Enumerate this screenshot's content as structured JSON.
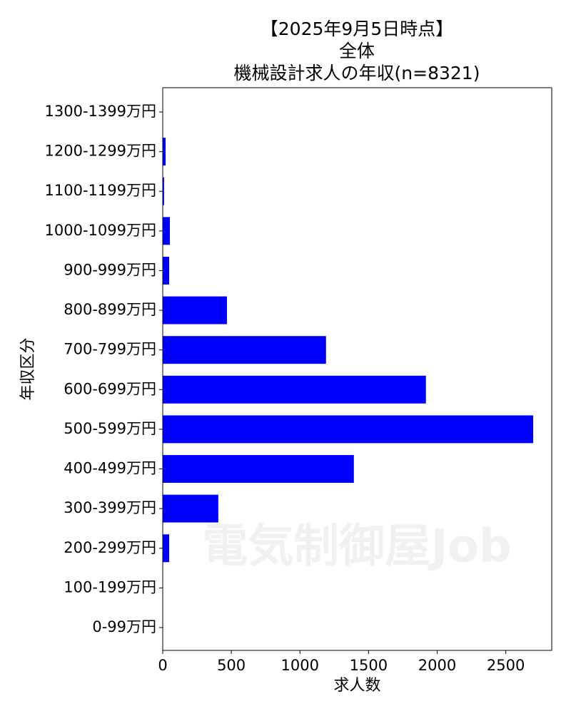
{
  "chart_data": {
    "type": "barh",
    "title": [
      "【2025年9月5日時点】",
      "全体",
      "機械設計求人の年収(n=8321)"
    ],
    "xlabel": "求人数",
    "ylabel": "年収区分",
    "categories": [
      "0-99万円",
      "100-199万円",
      "200-299万円",
      "300-399万円",
      "400-499万円",
      "500-599万円",
      "600-699万円",
      "700-799万円",
      "800-899万円",
      "900-999万円",
      "1000-1099万円",
      "1100-1199万円",
      "1200-1299万円",
      "1300-1399万円"
    ],
    "values": [
      0,
      0,
      47,
      405,
      1393,
      2700,
      1918,
      1190,
      468,
      47,
      52,
      10,
      21,
      0
    ],
    "color": "#0000ff",
    "xlim": [
      0,
      2835
    ],
    "xticks": [
      0,
      500,
      1000,
      1500,
      2000,
      2500
    ],
    "watermark": "電気制御屋Job"
  }
}
